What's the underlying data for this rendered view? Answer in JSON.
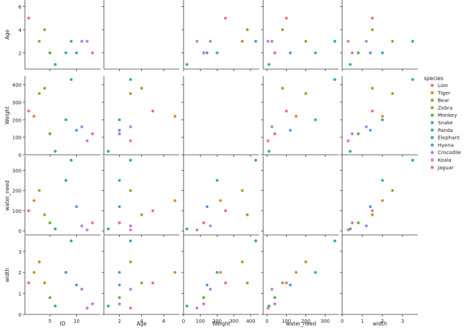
{
  "chart_data": {
    "type": "scatter",
    "kind": "pairplot",
    "variables": [
      "ID",
      "Age",
      "Weight",
      "water_need",
      "width"
    ],
    "visible_rows": [
      "Age",
      "Weight",
      "water_need",
      "width"
    ],
    "visible_cols": [
      "ID",
      "Age",
      "Weight",
      "water_need",
      "width"
    ],
    "diagonal": "empty",
    "hue": "species",
    "legend_title": "species",
    "legend_position": "right",
    "grid": false,
    "axes": {
      "ID": {
        "lim": [
          0.3,
          14.5
        ],
        "ticks": [
          5,
          10
        ]
      },
      "Age": {
        "lim": [
          0.6,
          7.4
        ],
        "ticks": [
          2,
          4,
          6
        ]
      },
      "Weight": {
        "lim": [
          0,
          450
        ],
        "ticks": [
          0,
          100,
          200,
          300,
          400
        ]
      },
      "water_need": {
        "lim": [
          -20,
          370
        ],
        "ticks": [
          0,
          100,
          200,
          300
        ]
      },
      "width": {
        "lim": [
          0,
          3.75
        ],
        "ticks": [
          0,
          1,
          2,
          3
        ]
      }
    },
    "series": [
      {
        "name": "Lion",
        "color": "#e8727d",
        "points": [
          {
            "ID": 1,
            "Age": 5,
            "Weight": 250,
            "water_need": 100,
            "width": 1.5
          }
        ]
      },
      {
        "name": "Tiger",
        "color": "#db8a3b",
        "points": [
          {
            "ID": 2,
            "Age": 7,
            "Weight": 220,
            "water_need": 150,
            "width": 2.0
          }
        ]
      },
      {
        "name": "Bear",
        "color": "#b79a2c",
        "points": [
          {
            "ID": 3,
            "Age": 3,
            "Weight": 350,
            "water_need": 200,
            "width": 2.5
          }
        ]
      },
      {
        "name": "Zebra",
        "color": "#9aa534",
        "points": [
          {
            "ID": 4,
            "Age": 4,
            "Weight": 380,
            "water_need": 80,
            "width": 1.5
          }
        ]
      },
      {
        "name": "Monkey",
        "color": "#5eae3d",
        "points": [
          {
            "ID": 5,
            "Age": 2,
            "Weight": 120,
            "water_need": 40,
            "width": 0.8
          }
        ]
      },
      {
        "name": "Snake",
        "color": "#3dae8a",
        "points": [
          {
            "ID": 6,
            "Age": 1,
            "Weight": 20,
            "water_need": 10,
            "width": 0.4
          }
        ]
      },
      {
        "name": "Panda",
        "color": "#3aaea4",
        "points": [
          {
            "ID": 8,
            "Age": 2,
            "Weight": 200,
            "water_need": 250,
            "width": 2.0
          }
        ]
      },
      {
        "name": "Elephant",
        "color": "#3aa6c2",
        "points": [
          {
            "ID": 9,
            "Age": 3,
            "Weight": 430,
            "water_need": 350,
            "width": 3.5
          }
        ]
      },
      {
        "name": "Hyena",
        "color": "#5e94d6",
        "points": [
          {
            "ID": 10,
            "Age": 2,
            "Weight": 140,
            "water_need": 120,
            "width": 1.4
          }
        ]
      },
      {
        "name": "Crocodile",
        "color": "#a08ad8",
        "points": [
          {
            "ID": 11,
            "Age": 3,
            "Weight": 160,
            "water_need": 25,
            "width": 1.2
          }
        ]
      },
      {
        "name": "Koala",
        "color": "#d774d4",
        "points": [
          {
            "ID": 12,
            "Age": 3,
            "Weight": 80,
            "water_need": 5,
            "width": 0.3
          }
        ]
      },
      {
        "name": "Jaguar",
        "color": "#e868b4",
        "points": [
          {
            "ID": 13,
            "Age": 2,
            "Weight": 120,
            "water_need": 40,
            "width": 0.5
          }
        ]
      }
    ]
  }
}
